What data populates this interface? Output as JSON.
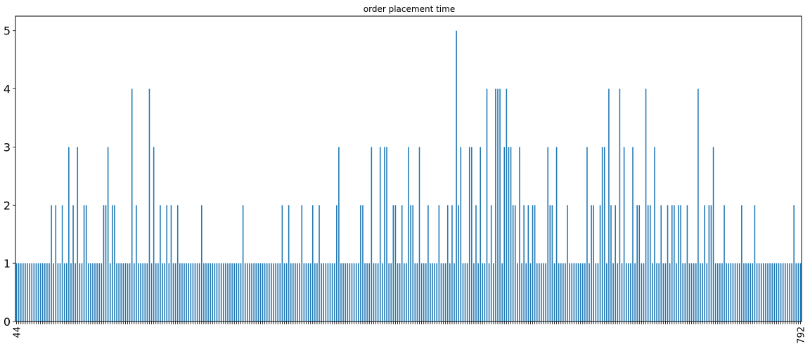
{
  "chart_data": {
    "type": "bar",
    "title": "order placement time",
    "xlabel": "",
    "ylabel": "",
    "ylim": [
      0,
      5.25
    ],
    "yticks": [
      0,
      1,
      2,
      3,
      4,
      5
    ],
    "grid": false,
    "legend": "none",
    "bar_color": "#1f77b4",
    "series": [
      {
        "values": [
          1,
          1,
          1,
          1,
          1,
          1,
          1,
          1,
          1,
          1,
          1,
          1,
          1,
          1,
          1,
          1,
          2,
          1,
          2,
          1,
          1,
          2,
          1,
          1,
          3,
          1,
          2,
          1,
          3,
          1,
          1,
          2,
          2,
          1,
          1,
          1,
          1,
          1,
          1,
          1,
          2,
          2,
          3,
          1,
          2,
          2,
          1,
          1,
          1,
          1,
          1,
          1,
          1,
          4,
          1,
          2,
          1,
          1,
          1,
          1,
          1,
          4,
          1,
          3,
          1,
          1,
          2,
          1,
          1,
          2,
          1,
          2,
          1,
          1,
          2,
          1,
          1,
          1,
          1,
          1,
          1,
          1,
          1,
          1,
          1,
          2,
          1,
          1,
          1,
          1,
          1,
          1,
          1,
          1,
          1,
          1,
          1,
          1,
          1,
          1,
          1,
          1,
          1,
          1,
          2,
          1,
          1,
          1,
          1,
          1,
          1,
          1,
          1,
          1,
          1,
          1,
          1,
          1,
          1,
          1,
          1,
          1,
          2,
          1,
          1,
          2,
          1,
          1,
          1,
          1,
          1,
          2,
          1,
          1,
          1,
          1,
          2,
          1,
          1,
          2,
          1,
          1,
          1,
          1,
          1,
          1,
          1,
          2,
          3,
          1,
          1,
          1,
          1,
          1,
          1,
          1,
          1,
          1,
          2,
          2,
          1,
          1,
          1,
          3,
          1,
          1,
          1,
          3,
          1,
          3,
          3,
          1,
          1,
          2,
          2,
          1,
          1,
          2,
          1,
          1,
          3,
          2,
          2,
          1,
          1,
          3,
          1,
          1,
          1,
          2,
          1,
          1,
          1,
          1,
          2,
          1,
          1,
          1,
          2,
          1,
          2,
          1,
          5,
          2,
          3,
          1,
          1,
          1,
          3,
          3,
          1,
          2,
          1,
          3,
          1,
          1,
          4,
          1,
          2,
          1,
          4,
          4,
          4,
          1,
          3,
          4,
          3,
          3,
          2,
          2,
          1,
          3,
          1,
          2,
          1,
          2,
          1,
          2,
          2,
          1,
          1,
          1,
          1,
          1,
          3,
          2,
          2,
          1,
          3,
          1,
          1,
          1,
          1,
          2,
          1,
          1,
          1,
          1,
          1,
          1,
          1,
          1,
          3,
          1,
          2,
          2,
          1,
          1,
          2,
          3,
          3,
          1,
          4,
          2,
          1,
          2,
          1,
          4,
          1,
          3,
          1,
          1,
          1,
          3,
          1,
          2,
          2,
          1,
          1,
          4,
          2,
          2,
          1,
          3,
          1,
          1,
          2,
          1,
          1,
          2,
          1,
          2,
          2,
          1,
          2,
          2,
          1,
          1,
          2,
          1,
          1,
          1,
          1,
          4,
          1,
          1,
          2,
          1,
          2,
          2,
          3,
          1,
          1,
          1,
          1,
          2,
          1,
          1,
          1,
          1,
          1,
          1,
          1,
          2,
          1,
          1,
          1,
          1,
          1,
          2,
          1,
          1,
          1,
          1,
          1,
          1,
          1,
          1,
          1,
          1,
          1,
          1,
          1,
          1,
          1,
          1,
          1,
          2,
          1,
          1,
          1
        ]
      }
    ],
    "xtick_labels_visible": [
      "44",
      "792"
    ]
  }
}
